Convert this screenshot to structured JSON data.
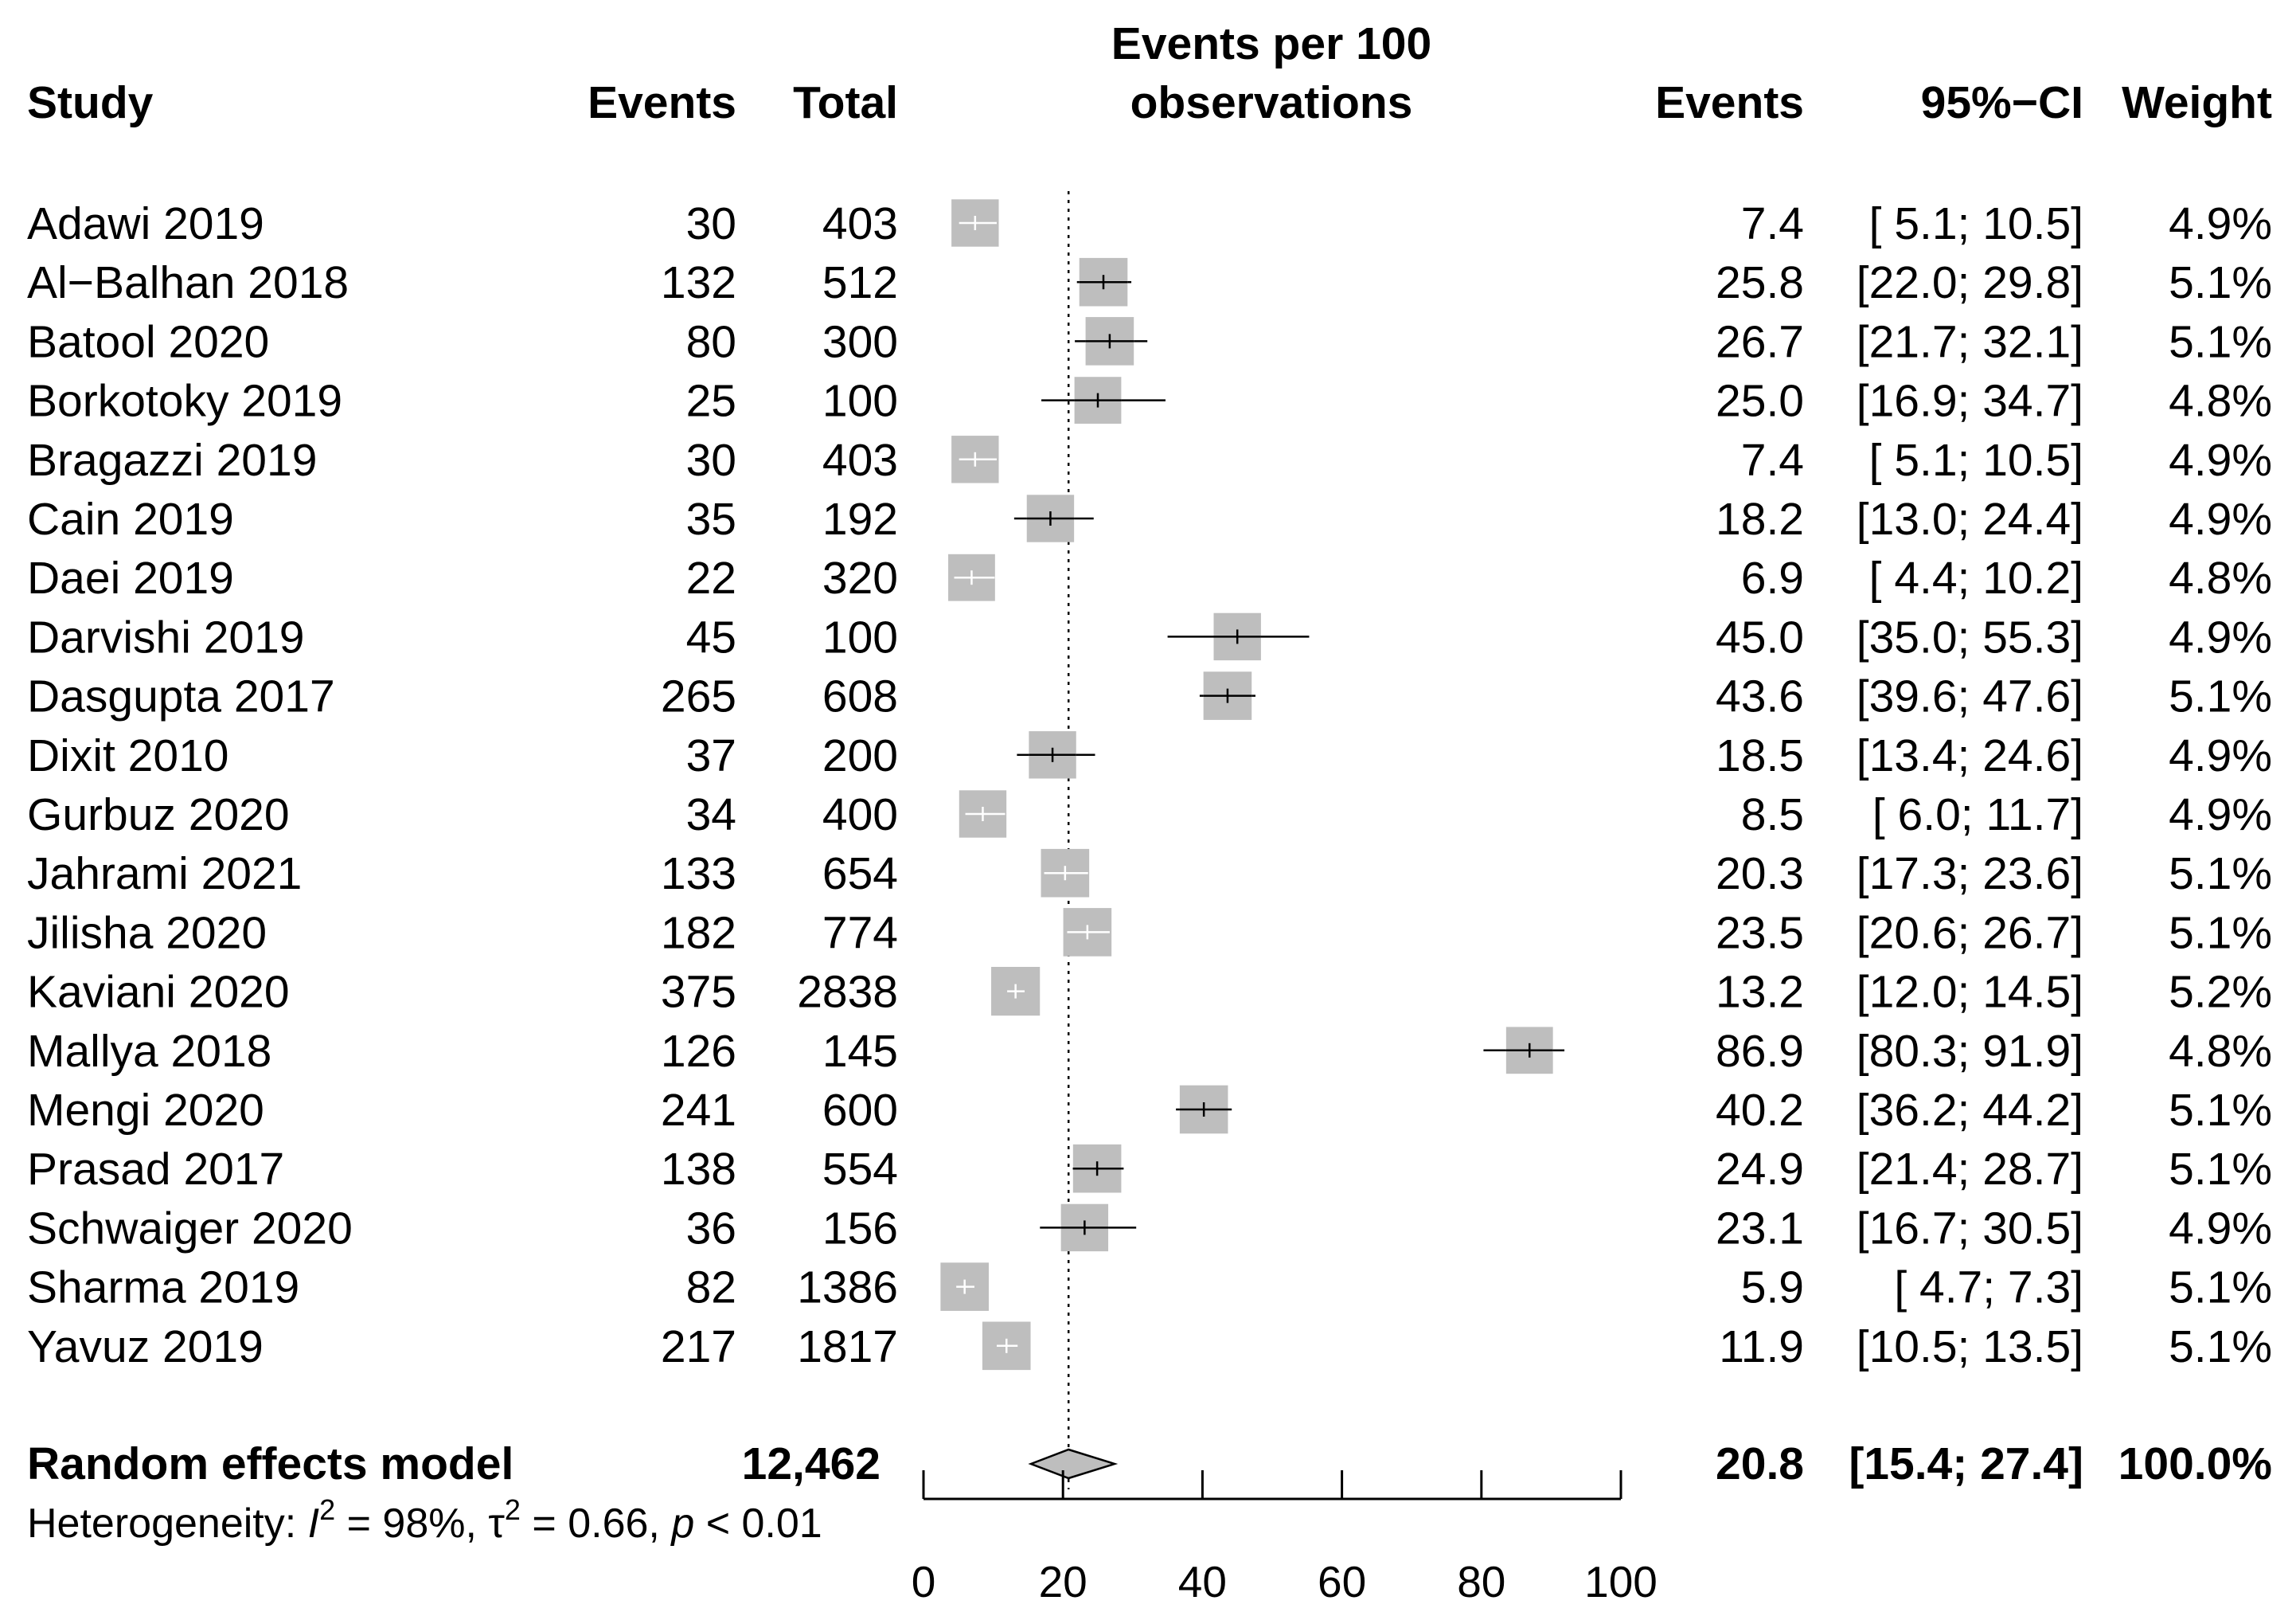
{
  "chart_data": {
    "type": "forest",
    "title": "Events per 100 observations",
    "headers": {
      "study": "Study",
      "events": "Events",
      "total": "Total",
      "plot_line1": "Events per 100",
      "plot_line2": "observations",
      "effect": "Events",
      "ci": "95%−CI",
      "weight": "Weight"
    },
    "xlim": [
      0,
      100
    ],
    "xticks": [
      0,
      20,
      40,
      60,
      80,
      100
    ],
    "xtick_labels": [
      "0",
      "20",
      "40",
      "60",
      "80",
      "100"
    ],
    "reference_line": 20.8,
    "studies": [
      {
        "study": "Adawi 2019",
        "events": "30",
        "total": "403",
        "est": 7.4,
        "lo": 5.1,
        "hi": 10.5,
        "est_text": "7.4",
        "ci_text": "[ 5.1; 10.5]",
        "weight_text": "4.9%",
        "weight": 4.9
      },
      {
        "study": "Al−Balhan 2018",
        "events": "132",
        "total": "512",
        "est": 25.8,
        "lo": 22.0,
        "hi": 29.8,
        "est_text": "25.8",
        "ci_text": "[22.0; 29.8]",
        "weight_text": "5.1%",
        "weight": 5.1
      },
      {
        "study": "Batool  2020",
        "events": "80",
        "total": "300",
        "est": 26.7,
        "lo": 21.7,
        "hi": 32.1,
        "est_text": "26.7",
        "ci_text": "[21.7; 32.1]",
        "weight_text": "5.1%",
        "weight": 5.1
      },
      {
        "study": "Borkotoky 2019",
        "events": "25",
        "total": "100",
        "est": 25.0,
        "lo": 16.9,
        "hi": 34.7,
        "est_text": "25.0",
        "ci_text": "[16.9; 34.7]",
        "weight_text": "4.8%",
        "weight": 4.8
      },
      {
        "study": "Bragazzi 2019",
        "events": "30",
        "total": "403",
        "est": 7.4,
        "lo": 5.1,
        "hi": 10.5,
        "est_text": "7.4",
        "ci_text": "[ 5.1; 10.5]",
        "weight_text": "4.9%",
        "weight": 4.9
      },
      {
        "study": "Cain 2019",
        "events": "35",
        "total": "192",
        "est": 18.2,
        "lo": 13.0,
        "hi": 24.4,
        "est_text": "18.2",
        "ci_text": "[13.0; 24.4]",
        "weight_text": "4.9%",
        "weight": 4.9
      },
      {
        "study": "Daei 2019",
        "events": "22",
        "total": "320",
        "est": 6.9,
        "lo": 4.4,
        "hi": 10.2,
        "est_text": "6.9",
        "ci_text": "[ 4.4; 10.2]",
        "weight_text": "4.8%",
        "weight": 4.8
      },
      {
        "study": "Darvishi 2019",
        "events": "45",
        "total": "100",
        "est": 45.0,
        "lo": 35.0,
        "hi": 55.3,
        "est_text": "45.0",
        "ci_text": "[35.0; 55.3]",
        "weight_text": "4.9%",
        "weight": 4.9
      },
      {
        "study": "Dasgupta 2017",
        "events": "265",
        "total": "608",
        "est": 43.6,
        "lo": 39.6,
        "hi": 47.6,
        "est_text": "43.6",
        "ci_text": "[39.6; 47.6]",
        "weight_text": "5.1%",
        "weight": 5.1
      },
      {
        "study": "Dixit 2010",
        "events": "37",
        "total": "200",
        "est": 18.5,
        "lo": 13.4,
        "hi": 24.6,
        "est_text": "18.5",
        "ci_text": "[13.4; 24.6]",
        "weight_text": "4.9%",
        "weight": 4.9
      },
      {
        "study": "Gurbuz 2020",
        "events": "34",
        "total": "400",
        "est": 8.5,
        "lo": 6.0,
        "hi": 11.7,
        "est_text": "8.5",
        "ci_text": "[ 6.0; 11.7]",
        "weight_text": "4.9%",
        "weight": 4.9
      },
      {
        "study": "Jahrami 2021",
        "events": "133",
        "total": "654",
        "est": 20.3,
        "lo": 17.3,
        "hi": 23.6,
        "est_text": "20.3",
        "ci_text": "[17.3; 23.6]",
        "weight_text": "5.1%",
        "weight": 5.1
      },
      {
        "study": "Jilisha 2020",
        "events": "182",
        "total": "774",
        "est": 23.5,
        "lo": 20.6,
        "hi": 26.7,
        "est_text": "23.5",
        "ci_text": "[20.6; 26.7]",
        "weight_text": "5.1%",
        "weight": 5.1
      },
      {
        "study": "Kaviani 2020",
        "events": "375",
        "total": "2838",
        "est": 13.2,
        "lo": 12.0,
        "hi": 14.5,
        "est_text": "13.2",
        "ci_text": "[12.0; 14.5]",
        "weight_text": "5.2%",
        "weight": 5.2
      },
      {
        "study": "Mallya 2018",
        "events": "126",
        "total": "145",
        "est": 86.9,
        "lo": 80.3,
        "hi": 91.9,
        "est_text": "86.9",
        "ci_text": "[80.3; 91.9]",
        "weight_text": "4.8%",
        "weight": 4.8
      },
      {
        "study": "Mengi 2020",
        "events": "241",
        "total": "600",
        "est": 40.2,
        "lo": 36.2,
        "hi": 44.2,
        "est_text": "40.2",
        "ci_text": "[36.2; 44.2]",
        "weight_text": "5.1%",
        "weight": 5.1
      },
      {
        "study": "Prasad 2017",
        "events": "138",
        "total": "554",
        "est": 24.9,
        "lo": 21.4,
        "hi": 28.7,
        "est_text": "24.9",
        "ci_text": "[21.4; 28.7]",
        "weight_text": "5.1%",
        "weight": 5.1
      },
      {
        "study": "Schwaiger 2020",
        "events": "36",
        "total": "156",
        "est": 23.1,
        "lo": 16.7,
        "hi": 30.5,
        "est_text": "23.1",
        "ci_text": "[16.7; 30.5]",
        "weight_text": "4.9%",
        "weight": 4.9
      },
      {
        "study": "Sharma 2019",
        "events": "82",
        "total": "1386",
        "est": 5.9,
        "lo": 4.7,
        "hi": 7.3,
        "est_text": "5.9",
        "ci_text": "[ 4.7;  7.3]",
        "weight_text": "5.1%",
        "weight": 5.1
      },
      {
        "study": "Yavuz 2019",
        "events": "217",
        "total": "1817",
        "est": 11.9,
        "lo": 10.5,
        "hi": 13.5,
        "est_text": "11.9",
        "ci_text": "[10.5; 13.5]",
        "weight_text": "5.1%",
        "weight": 5.1
      }
    ],
    "summary": {
      "label": "Random effects model",
      "total": "12,462",
      "est": 20.8,
      "lo": 15.4,
      "hi": 27.4,
      "est_text": "20.8",
      "ci_text": "[15.4; 27.4]",
      "weight_text": "100.0%"
    },
    "heterogeneity": {
      "prefix": "Heterogeneity: ",
      "i2_symbol": "I",
      "i2_text": " = 98%, ",
      "tau_symbol": "τ",
      "tau_text": " = 0.66, ",
      "p_symbol": "p",
      "p_text": " < 0.01",
      "superscript": "2"
    },
    "colors": {
      "box": "#bebebe",
      "diamond_fill": "#bebebe",
      "line": "#000000",
      "inner_ci": "#ffffff"
    }
  }
}
